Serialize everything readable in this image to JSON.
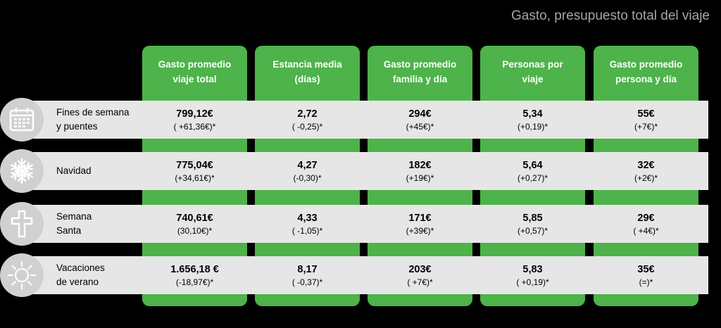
{
  "title": "Gasto, presupuesto total del viaje",
  "columns": [
    "Gasto promedio\nviaje total",
    "Estancia media\n(días)",
    "Gasto promedio\nfamilia y día",
    "Personas por\nviaje",
    "Gasto promedio\npersona y día"
  ],
  "rows": [
    {
      "icon": "calendar-icon",
      "label": "Fines de semana\ny puentes",
      "cells": [
        {
          "value": "799,12€",
          "change": "( +61,36€)*"
        },
        {
          "value": "2,72",
          "change": "( -0,25)*"
        },
        {
          "value": "294€",
          "change": "(+45€)*"
        },
        {
          "value": "5,34",
          "change": "(+0,19)*"
        },
        {
          "value": "55€",
          "change": "(+7€)*"
        }
      ]
    },
    {
      "icon": "snowflake-icon",
      "label": "Navidad",
      "cells": [
        {
          "value": "775,04€",
          "change": "(+34,61€)*"
        },
        {
          "value": "4,27",
          "change": "(-0,30)*"
        },
        {
          "value": "182€",
          "change": "(+19€)*"
        },
        {
          "value": "5,64",
          "change": "(+0,27)*"
        },
        {
          "value": "32€",
          "change": "(+2€)*"
        }
      ]
    },
    {
      "icon": "cross-icon",
      "label": "Semana\nSanta",
      "cells": [
        {
          "value": "740,61€",
          "change": "(30,10€)*"
        },
        {
          "value": "4,33",
          "change": "( -1,05)*"
        },
        {
          "value": "171€",
          "change": "(+39€)*"
        },
        {
          "value": "5,85",
          "change": "(+0,57)*"
        },
        {
          "value": "29€",
          "change": "( +4€)*"
        }
      ]
    },
    {
      "icon": "sun-icon",
      "label": "Vacaciones\nde verano",
      "cells": [
        {
          "value": "1.656,18 €",
          "change": "(-18,97€)*"
        },
        {
          "value": "8,17",
          "change": "( -0,37)*"
        },
        {
          "value": "203€",
          "change": "( +7€)*"
        },
        {
          "value": "5,83",
          "change": "( +0,19)*"
        },
        {
          "value": "35€",
          "change": "(=)*"
        }
      ]
    }
  ]
}
